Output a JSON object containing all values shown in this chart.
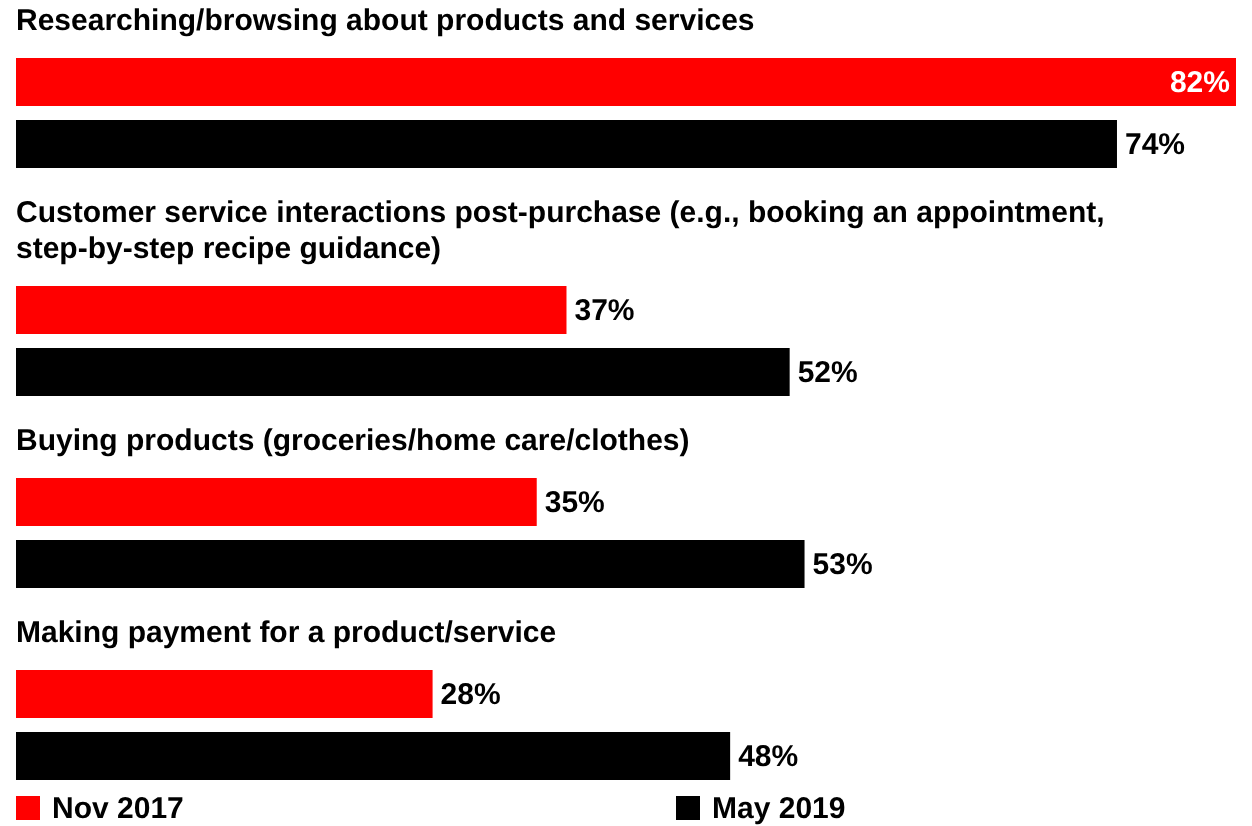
{
  "chart_data": {
    "type": "bar",
    "orientation": "horizontal",
    "categories": [
      "Researching/browsing about products and services",
      "Customer service interactions post-purchase (e.g., booking an appointment, step-by-step recipe guidance)",
      "Buying products (groceries/home care/clothes)",
      "Making payment for a product/service"
    ],
    "series": [
      {
        "name": "Nov 2017",
        "color": "#ff0000",
        "values": [
          82,
          37,
          35,
          28
        ],
        "value_labels": [
          "82%",
          "37%",
          "35%",
          "28%"
        ]
      },
      {
        "name": "May 2019",
        "color": "#000000",
        "values": [
          74,
          52,
          53,
          48
        ],
        "value_labels": [
          "74%",
          "52%",
          "53%",
          "48%"
        ]
      }
    ],
    "legend": "bottom"
  }
}
